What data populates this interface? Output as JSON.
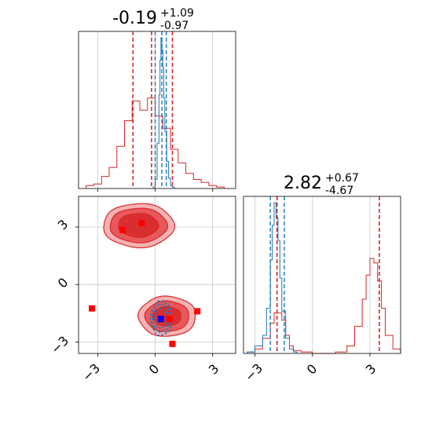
{
  "colors": {
    "red": "#d62728",
    "red_light": "#f4a5a6",
    "red_mid": "#e5484a",
    "blue": "#1f77b4",
    "marker_blue": "#0000ff",
    "marker_red": "#ff0000",
    "grid": "#c8c8c8"
  },
  "chart_data": {
    "type": "corner",
    "parameters": [
      "param_1",
      "param_2"
    ],
    "panels": [
      {
        "name": "marginal-param-1",
        "type": "histogram",
        "title": {
          "median": "-0.19",
          "plus": "+1.09",
          "minus": "-0.97"
        },
        "xlim": [
          -4.0,
          4.2
        ],
        "xticks": [
          -3,
          0,
          3
        ],
        "grid": true,
        "series_red": {
          "bin_edges": [
            -3.6,
            -3.2,
            -2.8,
            -2.4,
            -2.0,
            -1.6,
            -1.2,
            -0.8,
            -0.4,
            0.0,
            0.4,
            0.8,
            1.2,
            1.6,
            2.0,
            2.4,
            2.8,
            3.2,
            3.6
          ],
          "counts": [
            0.02,
            0.03,
            0.08,
            0.14,
            0.28,
            0.45,
            0.58,
            0.52,
            0.6,
            0.48,
            0.4,
            0.26,
            0.17,
            0.1,
            0.06,
            0.04,
            0.02,
            0.01
          ]
        },
        "series_blue": {
          "bin_edges": [
            -0.1,
            0.0,
            0.1,
            0.2,
            0.25,
            0.3,
            0.35,
            0.4,
            0.45,
            0.5,
            0.6,
            0.7,
            0.8,
            0.9,
            1.0
          ],
          "counts": [
            0.01,
            0.06,
            0.3,
            0.62,
            0.85,
            1.0,
            0.92,
            0.8,
            0.6,
            0.38,
            0.18,
            0.07,
            0.02,
            0.01
          ]
        },
        "vlines_red": [
          -1.16,
          -0.19,
          0.9
        ],
        "vlines_blue": [
          0.0,
          0.35,
          0.58
        ]
      },
      {
        "name": "marginal-param-2",
        "type": "histogram",
        "title": {
          "median": "2.82",
          "plus": "+0.67",
          "minus": "-4.67"
        },
        "xlim": [
          -3.6,
          4.6
        ],
        "xticks": [
          -3,
          0,
          3
        ],
        "grid": true,
        "series_red": {
          "bin_edges": [
            -3.4,
            -3.0,
            -2.6,
            -2.2,
            -2.0,
            -1.8,
            -1.6,
            -1.4,
            -1.2,
            -1.0,
            -0.6,
            0.0,
            0.6,
            1.2,
            1.8,
            2.2,
            2.6,
            2.8,
            3.0,
            3.2,
            3.4,
            3.6,
            3.8,
            4.2,
            4.6
          ],
          "counts": [
            0.01,
            0.03,
            0.1,
            0.2,
            0.27,
            0.27,
            0.22,
            0.12,
            0.05,
            0.02,
            0.01,
            0.0,
            0.0,
            0.01,
            0.05,
            0.18,
            0.36,
            0.52,
            0.63,
            0.6,
            0.48,
            0.3,
            0.12,
            0.03
          ]
        },
        "series_blue": {
          "bin_edges": [
            -3.4,
            -3.0,
            -2.6,
            -2.4,
            -2.2,
            -2.1,
            -2.0,
            -1.9,
            -1.8,
            -1.7,
            -1.6,
            -1.4,
            -1.2,
            -1.0,
            -0.8
          ],
          "counts": [
            0.01,
            0.05,
            0.12,
            0.3,
            0.62,
            0.85,
            1.0,
            0.9,
            0.75,
            0.5,
            0.28,
            0.1,
            0.03,
            0.01
          ]
        },
        "vlines_red": [
          -1.85,
          3.49
        ],
        "vlines_blue": [
          -2.2,
          -1.85,
          -1.47
        ]
      },
      {
        "name": "joint-param-1-param-2",
        "type": "contour",
        "xlim": [
          -4.0,
          4.2
        ],
        "ylim": [
          -3.6,
          4.6
        ],
        "xticks": [
          -3,
          0,
          3
        ],
        "yticks": [
          -3,
          0,
          3
        ],
        "grid": true,
        "red_modes": [
          {
            "cx": -0.9,
            "cy": 3.1,
            "levels": [
              [
                1.85,
                1.15
              ],
              [
                1.5,
                0.9
              ],
              [
                1.05,
                0.62
              ]
            ]
          },
          {
            "cx": 0.6,
            "cy": -1.65,
            "levels": [
              [
                1.5,
                1.05
              ],
              [
                1.15,
                0.8
              ],
              [
                0.75,
                0.5
              ]
            ]
          }
        ],
        "blue_mode": {
          "cx": 0.3,
          "cy": -1.75,
          "levels": [
            [
              0.55,
              0.9
            ],
            [
              0.45,
              0.72
            ],
            [
              0.32,
              0.5
            ]
          ]
        },
        "red_markers": [
          [
            -3.3,
            -1.25
          ],
          [
            -1.7,
            2.85
          ],
          [
            -0.7,
            3.2
          ],
          [
            0.75,
            -1.8
          ],
          [
            0.9,
            -3.1
          ],
          [
            2.2,
            -1.4
          ]
        ],
        "blue_markers": [
          [
            0.3,
            -1.8
          ]
        ]
      }
    ]
  },
  "ticks": {
    "panel_x": [
      "−3",
      "0",
      "3"
    ],
    "panel_y": [
      "−3",
      "0",
      "3"
    ]
  }
}
